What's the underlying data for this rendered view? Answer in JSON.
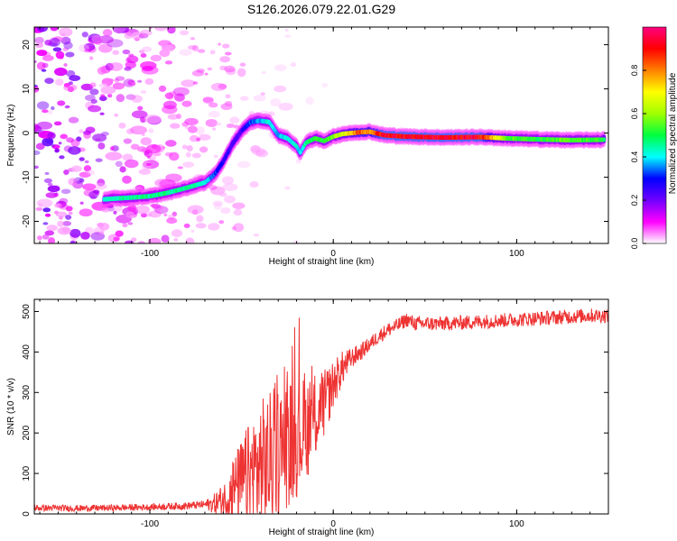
{
  "page_title": "S126.2026.079.22.01.G29",
  "chart_data": [
    {
      "type": "heatmap",
      "title": "S126.2026.079.22.01.G29",
      "xlabel": "Height of straight line (km)",
      "ylabel": "Frequency (Hz)",
      "xlim": [
        -163,
        150
      ],
      "ylim": [
        -25,
        24
      ],
      "x_ticks": [
        -100,
        0,
        100
      ],
      "y_ticks": [
        20,
        10,
        0,
        -10,
        -20
      ],
      "x_tick_labels": [
        "-100",
        "0",
        "100"
      ],
      "y_tick_labels": [
        "20",
        "10",
        "0",
        "-10",
        "-20"
      ],
      "colorbar": {
        "label": "Normalized spectral amplitude",
        "range": [
          0,
          1
        ],
        "ticks": [
          0.0,
          0.2,
          0.4,
          0.6,
          0.8
        ],
        "tick_labels": [
          "0.0",
          "0.2",
          "0.4",
          "0.6",
          "0.8"
        ],
        "colormap": [
          "#ffffff",
          "#ff00ff",
          "#7000ff",
          "#0000ff",
          "#00ffff",
          "#00ff40",
          "#a0ff00",
          "#ffff00",
          "#ff8000",
          "#ff0000",
          "#ff0080"
        ]
      },
      "ridge": {
        "description": "dominant frequency ridge vs height",
        "x": [
          -125,
          -110,
          -100,
          -90,
          -80,
          -70,
          -65,
          -60,
          -55,
          -50,
          -45,
          -40,
          -35,
          -30,
          -25,
          -20,
          -18,
          -15,
          -10,
          -5,
          0,
          5,
          10,
          15,
          20,
          28,
          40,
          60,
          80,
          95,
          110,
          130,
          148
        ],
        "y": [
          -15,
          -14.6,
          -14.3,
          -13.5,
          -12.4,
          -11.2,
          -9.5,
          -6.5,
          -2.5,
          0.5,
          2.5,
          2.8,
          2.5,
          -0.5,
          -1.2,
          -3.0,
          -4.5,
          -2.2,
          -1.2,
          -1.8,
          -0.8,
          -0.2,
          0.0,
          0.2,
          0.3,
          -0.5,
          -0.8,
          -1.0,
          -0.9,
          -1.2,
          -1.4,
          -1.6,
          -1.5
        ],
        "amplitude": [
          0.45,
          0.5,
          0.5,
          0.5,
          0.5,
          0.45,
          0.35,
          0.3,
          0.25,
          0.25,
          0.35,
          0.4,
          0.45,
          0.4,
          0.45,
          0.45,
          0.4,
          0.5,
          0.55,
          0.55,
          0.6,
          0.7,
          0.8,
          0.9,
          0.85,
          1.0,
          1.0,
          1.0,
          1.0,
          0.6,
          0.55,
          0.6,
          0.55
        ]
      }
    },
    {
      "type": "line",
      "xlabel": "Height of straight line (km)",
      "ylabel": "SNR (10 * v/v)",
      "xlim": [
        -163,
        150
      ],
      "ylim": [
        0,
        530
      ],
      "x_ticks": [
        -100,
        0,
        100
      ],
      "y_ticks": [
        0,
        100,
        200,
        300,
        400,
        500
      ],
      "x_tick_labels": [
        "-100",
        "0",
        "100"
      ],
      "y_tick_labels": [
        "0",
        "100",
        "200",
        "300",
        "400",
        "500"
      ],
      "color": "#ee3333",
      "trend": {
        "x": [
          -163,
          -140,
          -120,
          -100,
          -80,
          -65,
          -58,
          -52,
          -45,
          -40,
          -35,
          -30,
          -25,
          -20,
          -15,
          -10,
          -5,
          0,
          5,
          10,
          15,
          20,
          25,
          30,
          35,
          40,
          45,
          60,
          80,
          100,
          120,
          140,
          150
        ],
        "y": [
          15,
          14,
          15,
          17,
          20,
          25,
          40,
          70,
          95,
          115,
          130,
          150,
          175,
          190,
          210,
          240,
          270,
          320,
          360,
          385,
          400,
          420,
          440,
          455,
          465,
          480,
          470,
          470,
          475,
          480,
          485,
          490,
          490
        ]
      },
      "noise_amplitude": {
        "x": [
          -163,
          -100,
          -70,
          -60,
          -50,
          -40,
          -30,
          -20,
          -10,
          0,
          10,
          20,
          40,
          150
        ],
        "y": [
          8,
          8,
          10,
          40,
          110,
          170,
          170,
          150,
          110,
          60,
          25,
          18,
          18,
          18
        ]
      }
    }
  ]
}
